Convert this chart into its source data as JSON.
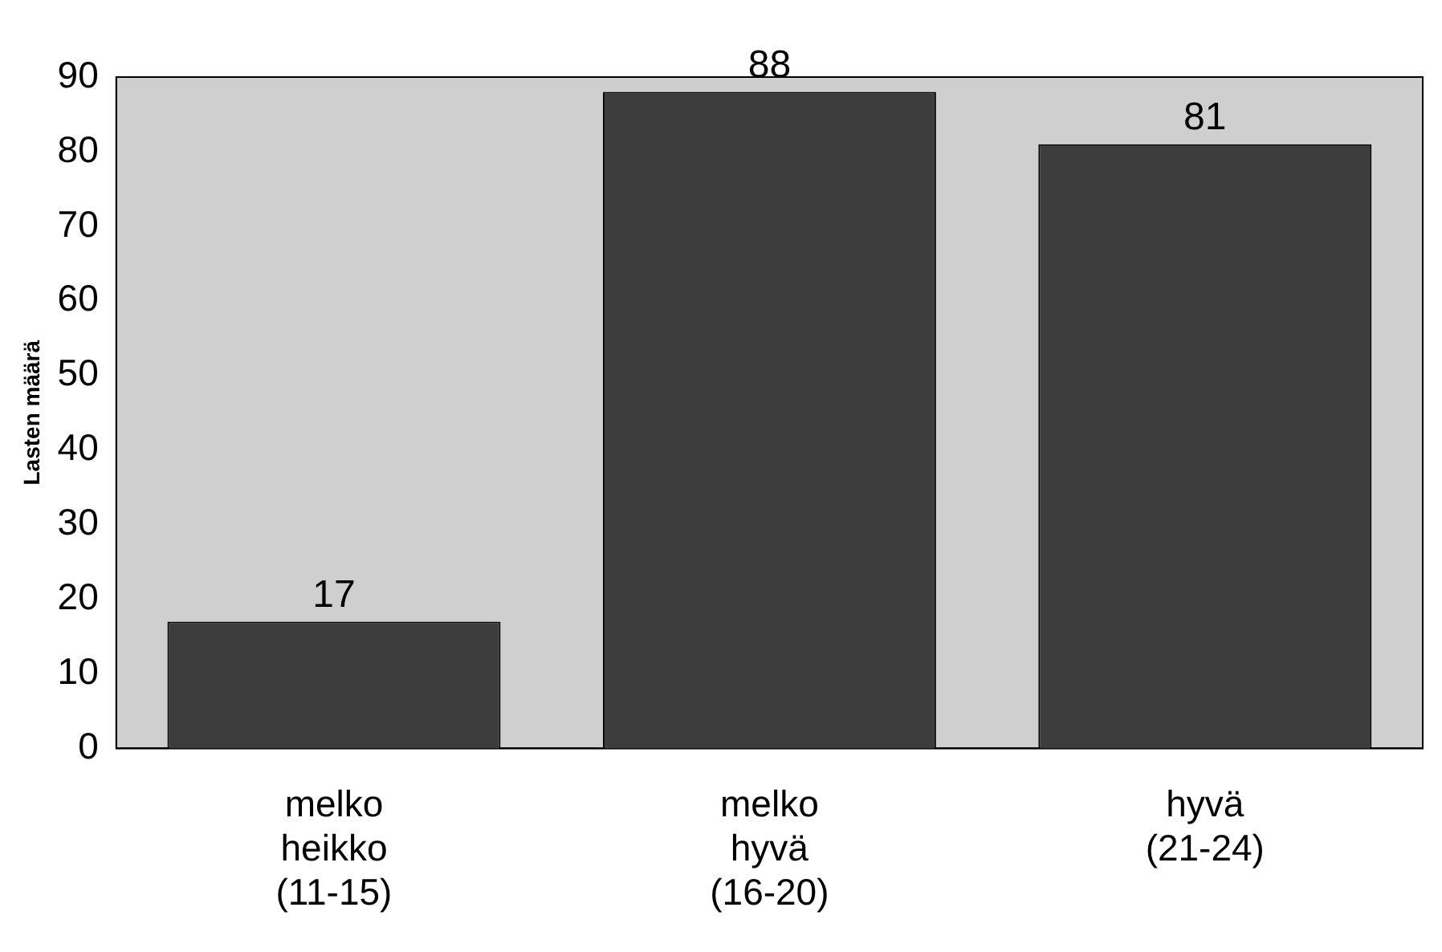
{
  "chart_data": {
    "type": "bar",
    "ylabel": "Lasten määrä",
    "categories": [
      "melko heikko (11-15)",
      "melko hyvä (16-20)",
      "hyvä (21-24)"
    ],
    "values": [
      17,
      88,
      81
    ],
    "color": "#3c3c3c",
    "ylim": [
      0,
      90
    ],
    "yticks": [
      0,
      10,
      20,
      30,
      40,
      50,
      60,
      70,
      80,
      90
    ],
    "grid": false,
    "legend": false,
    "data_labels": true
  }
}
